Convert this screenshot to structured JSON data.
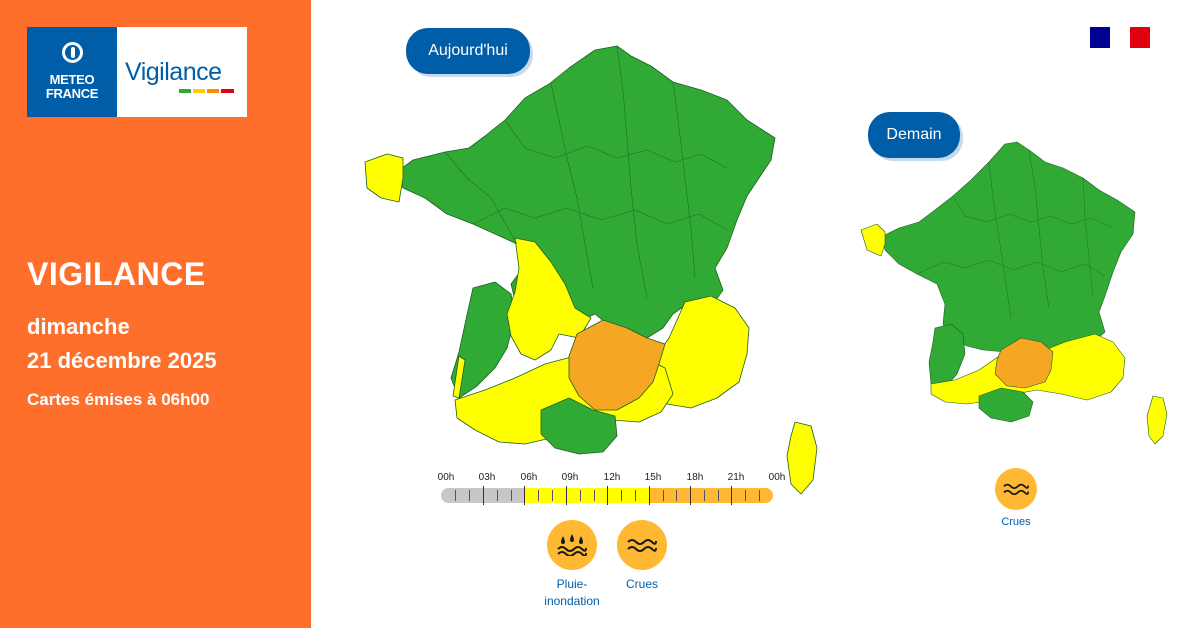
{
  "brand": {
    "logo_text_line1": "METEO",
    "logo_text_line2": "FRANCE",
    "product": "Vigilance"
  },
  "header": {
    "title": "VIGILANCE",
    "day": "dimanche",
    "date": "21 décembre 2025",
    "issued": "Cartes émises à 06h00"
  },
  "maps": {
    "today_label": "Aujourd'hui",
    "tomorrow_label": "Demain"
  },
  "timeline": {
    "ticks": [
      "00h",
      "03h",
      "06h",
      "09h",
      "12h",
      "15h",
      "18h",
      "21h",
      "00h"
    ],
    "segments": [
      {
        "from": "00h",
        "to": "06h",
        "level": "none"
      },
      {
        "from": "06h",
        "to": "15h",
        "level": "yellow"
      },
      {
        "from": "15h",
        "to": "00h",
        "level": "orange"
      }
    ]
  },
  "hazards_today": [
    {
      "icon": "rain-flood-icon",
      "label_line1": "Pluie-",
      "label_line2": "inondation"
    },
    {
      "icon": "flood-icon",
      "label_line1": "Crues",
      "label_line2": ""
    }
  ],
  "hazards_tomorrow": [
    {
      "icon": "flood-icon",
      "label_line1": "Crues",
      "label_line2": ""
    }
  ],
  "colors": {
    "panel": "#ff6f2c",
    "brand_blue": "#005da8",
    "green": "#31aa35",
    "yellow": "#ffff00",
    "orange": "#ffb833",
    "grey": "#c7c7c7"
  }
}
